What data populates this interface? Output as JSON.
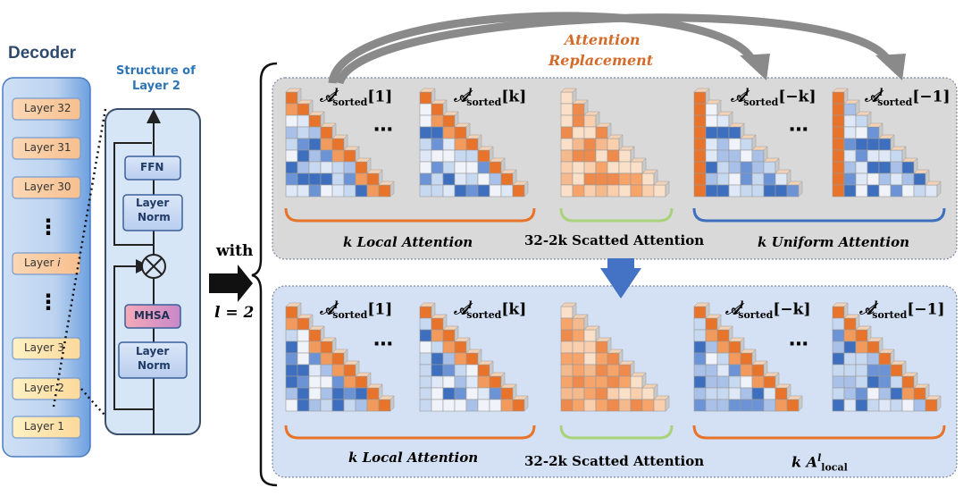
{
  "decoder": {
    "title": "Decoder",
    "layers": [
      "Layer 32",
      "Layer 31",
      "Layer 30",
      "⋮",
      "Layer i",
      "⋮",
      "Layer 3",
      "Layer 2",
      "Layer 1"
    ]
  },
  "structure": {
    "title_line1": "Structure of",
    "title_line2": "Layer 2",
    "ffn": "FFN",
    "norm_top": [
      "Layer",
      "Norm"
    ],
    "mhsa": "MHSA",
    "norm_bottom": [
      "Layer",
      "Norm"
    ]
  },
  "connector": {
    "with": "with",
    "l_eq": "l = 2"
  },
  "replacement_label": [
    "Attention",
    "Replacement"
  ],
  "top_panel": {
    "labels": [
      "[1]",
      "[k]",
      "[−k]",
      "[−1]"
    ],
    "ellipsis": "⋯",
    "captions": [
      "k Local Attention",
      "32-2k Scatted Attention",
      "k Uniform Attention"
    ]
  },
  "bottom_panel": {
    "labels": [
      "[1]",
      "[k]",
      "[−k]",
      "[−1]"
    ],
    "ellipsis": "⋯",
    "captions": [
      "k Local Attention",
      "32-2k Scatted Attention",
      "k A"
    ],
    "caption3_sup": "l",
    "caption3_sub": "local"
  },
  "symbols": {
    "A": "𝒜",
    "l": "l",
    "sorted": "sorted"
  },
  "colors": {
    "orange": "#e8732a",
    "blue": "#3e6fbf",
    "green": "#a8d37a",
    "panel_top": "#d9d9d9",
    "panel_bottom": "#d4e0f3",
    "arrow_gray": "#7f7f7f",
    "replacement_text": "#d46b2a"
  }
}
